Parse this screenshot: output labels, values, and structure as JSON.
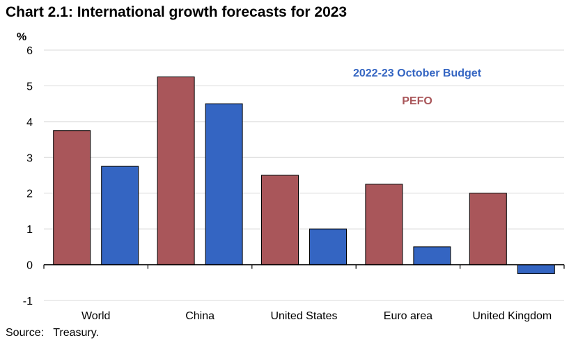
{
  "title": "Chart 2.1: International growth forecasts for 2023",
  "source": "Source:   Treasury.",
  "chart_data": {
    "type": "bar",
    "title": "Chart 2.1: International growth forecasts for 2023",
    "ylabel": "%",
    "xlabel": "",
    "ylim": [
      -1,
      6
    ],
    "yticks": [
      -1,
      0,
      1,
      2,
      3,
      4,
      5,
      6
    ],
    "grid": true,
    "categories": [
      "World",
      "China",
      "United States",
      "Euro area",
      "United Kingdom"
    ],
    "series": [
      {
        "name": "PEFO",
        "values": [
          3.75,
          5.25,
          2.5,
          2.25,
          2.0
        ],
        "color": "#a9565a"
      },
      {
        "name": "2022-23 October Budget",
        "values": [
          2.75,
          4.5,
          1.0,
          0.5,
          -0.25
        ],
        "color": "#3465c2"
      }
    ],
    "legend": [
      {
        "label": "2022-23 October Budget",
        "color": "#3465c2"
      },
      {
        "label": "PEFO",
        "color": "#a9565a"
      }
    ],
    "legend_position": "top-right"
  }
}
